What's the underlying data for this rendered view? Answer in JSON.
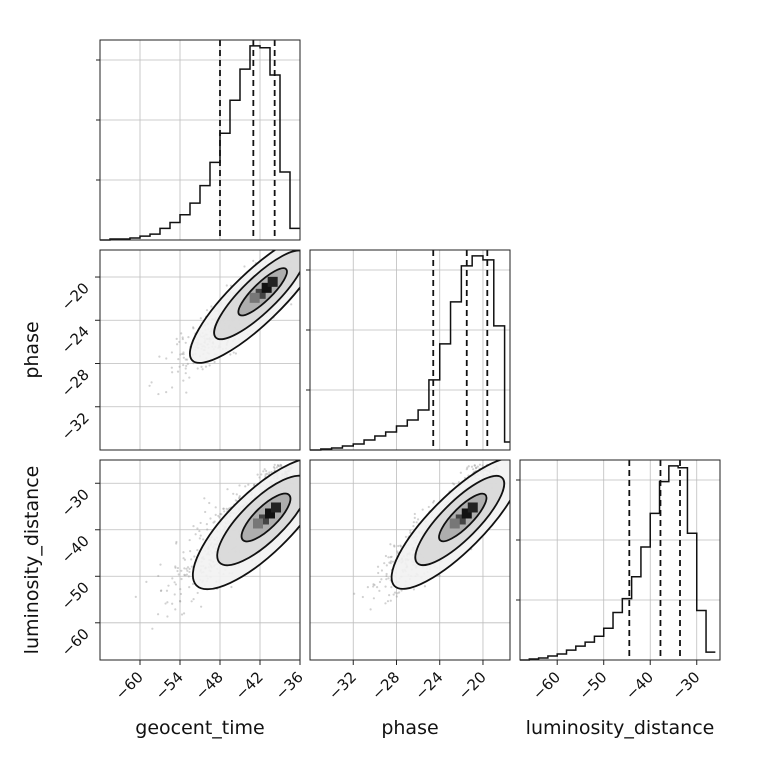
{
  "chart_data": {
    "type": "corner",
    "parameters": [
      "geocent_time",
      "phase",
      "luminosity_distance"
    ],
    "axes": {
      "geocent_time": {
        "range": [
          -66,
          -36
        ],
        "ticks": [
          -60,
          -54,
          -48,
          -42,
          -36
        ],
        "tick_labels": [
          "−60",
          "−54",
          "−48",
          "−42",
          "−36"
        ],
        "label": "geocent_time"
      },
      "phase": {
        "range": [
          -36,
          -17.5
        ],
        "ticks": [
          -32,
          -28,
          -24,
          -20
        ],
        "tick_labels": [
          "−32",
          "−28",
          "−24",
          "−20"
        ],
        "label": "phase"
      },
      "luminosity_distance": {
        "range": [
          -68,
          -25
        ],
        "ticks": [
          -60,
          -50,
          -40,
          -30
        ],
        "tick_labels": [
          "−60",
          "−50",
          "−40",
          "−30"
        ],
        "label": "luminosity_distance"
      }
    },
    "marginals": [
      {
        "parameter": "geocent_time",
        "bin_edges": [
          -66,
          -64.5,
          -63,
          -61.5,
          -60,
          -58.5,
          -57,
          -55.5,
          -54,
          -52.5,
          -51,
          -49.5,
          -48,
          -46.5,
          -45,
          -43.5,
          -42,
          -40.5,
          -39,
          -37.5,
          -36
        ],
        "counts": [
          0,
          0.005,
          0.005,
          0.01,
          0.02,
          0.03,
          0.06,
          0.09,
          0.13,
          0.19,
          0.28,
          0.4,
          0.55,
          0.72,
          0.88,
          1.0,
          0.99,
          0.85,
          0.35,
          0.06
        ],
        "quantiles": [
          -48,
          -43,
          -39.8
        ]
      },
      {
        "parameter": "phase",
        "bin_edges": [
          -36,
          -35,
          -34,
          -33,
          -32,
          -31,
          -30,
          -29,
          -28,
          -27,
          -26,
          -25,
          -24,
          -23,
          -22,
          -21,
          -20,
          -19,
          -18,
          -17.5
        ],
        "counts": [
          0,
          0.005,
          0.01,
          0.02,
          0.03,
          0.05,
          0.07,
          0.09,
          0.12,
          0.15,
          0.2,
          0.35,
          0.53,
          0.74,
          0.92,
          0.97,
          0.95,
          0.62,
          0.04
        ],
        "quantiles": [
          -24.6,
          -21.5,
          -19.6
        ]
      },
      {
        "parameter": "luminosity_distance",
        "bin_edges": [
          -68,
          -66,
          -64,
          -62,
          -60,
          -58,
          -56,
          -54,
          -52,
          -50,
          -48,
          -46,
          -44,
          -42,
          -40,
          -38,
          -36,
          -34,
          -32,
          -30,
          -28,
          -26
        ],
        "counts": [
          0,
          0.005,
          0.01,
          0.02,
          0.03,
          0.05,
          0.07,
          0.09,
          0.12,
          0.16,
          0.24,
          0.31,
          0.42,
          0.57,
          0.74,
          0.9,
          0.98,
          0.97,
          0.64,
          0.25,
          0.04
        ],
        "quantiles": [
          -44.5,
          -37.8,
          -33.6
        ]
      }
    ],
    "joint_2d": [
      {
        "x": "geocent_time",
        "y": "phase",
        "mean": [
          -44,
          -22.5
        ],
        "std": [
          5,
          3
        ],
        "correlation": 0.9,
        "peak": [
          -41,
          -21
        ]
      },
      {
        "x": "geocent_time",
        "y": "luminosity_distance",
        "mean": [
          -44,
          -38
        ],
        "std": [
          5,
          7
        ],
        "correlation": 0.85,
        "peak": [
          -40.5,
          -36.5
        ]
      },
      {
        "x": "phase",
        "y": "luminosity_distance",
        "mean": [
          -23,
          -38
        ],
        "std": [
          3,
          7
        ],
        "correlation": 0.88,
        "peak": [
          -21.5,
          -36.5
        ]
      }
    ],
    "grid": true
  }
}
